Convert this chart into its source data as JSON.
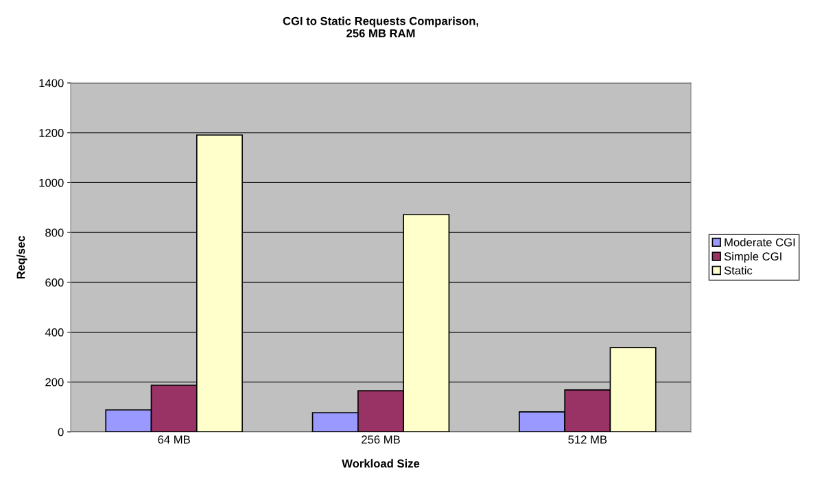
{
  "chart_data": {
    "type": "bar",
    "title": "CGI to Static Requests Comparison,\n256 MB RAM",
    "xlabel": "Workload Size",
    "ylabel": "Req/sec",
    "categories": [
      "64 MB",
      "256 MB",
      "512 MB"
    ],
    "series": [
      {
        "name": "Moderate CGI",
        "color": "#9999ff",
        "values": [
          88,
          77,
          80
        ]
      },
      {
        "name": "Simple CGI",
        "color": "#993366",
        "values": [
          187,
          165,
          168
        ]
      },
      {
        "name": "Static",
        "color": "#ffffcc",
        "values": [
          1191,
          872,
          338
        ]
      }
    ],
    "ylim": [
      0,
      1400
    ],
    "yticks": [
      0,
      200,
      400,
      600,
      800,
      1000,
      1200,
      1400
    ],
    "grid": "y",
    "legend": "right"
  }
}
